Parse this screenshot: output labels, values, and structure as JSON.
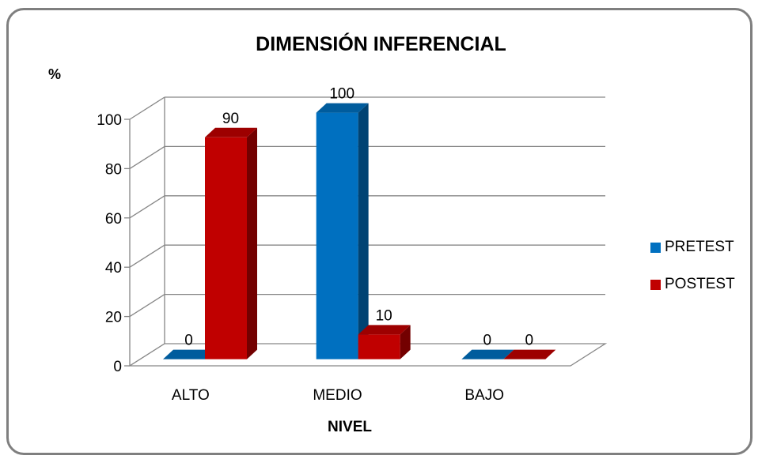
{
  "chart_data": {
    "type": "bar",
    "title": "DIMENSIÓN INFERENCIAL",
    "ylabel": "%",
    "xlabel": "NIVEL",
    "categories": [
      "ALTO",
      "MEDIO",
      "BAJO"
    ],
    "series": [
      {
        "name": "PRETEST",
        "values": [
          0,
          100,
          0
        ],
        "color": "#0070c0"
      },
      {
        "name": "POSTEST",
        "values": [
          90,
          10,
          0
        ],
        "color": "#c00000"
      }
    ],
    "ylim": [
      0,
      100
    ],
    "yticks": [
      0,
      20,
      40,
      60,
      80,
      100
    ],
    "grid": true,
    "legend_position": "right",
    "data_labels": true
  }
}
